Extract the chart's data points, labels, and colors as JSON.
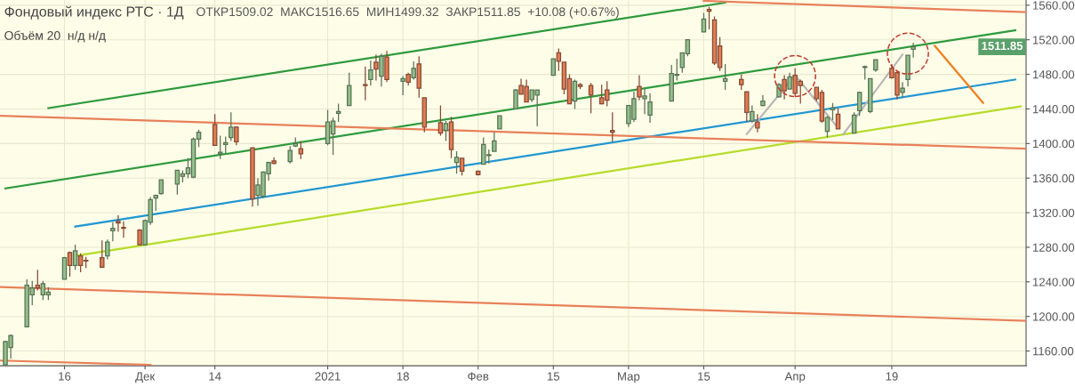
{
  "chart_data": {
    "type": "candlestick",
    "title": "Фондовый индекс РТС · 1Д",
    "annotations": [
      "ОТКР1509.02  МАКС1516.65  МИН1499.32  ЗАКР1511.85  +10.08 (+0.67%)",
      "Объём 20  н/д н/д",
      "1511.85"
    ],
    "x": [
      "2020-11-05",
      "2020-11-06",
      "2020-11-09",
      "2020-11-10",
      "2020-11-11",
      "2020-11-12",
      "2020-11-13",
      "2020-11-16",
      "2020-11-17",
      "2020-11-18",
      "2020-11-19",
      "2020-11-20",
      "2020-11-23",
      "2020-11-24",
      "2020-11-25",
      "2020-11-26",
      "2020-11-27",
      "2020-11-30",
      "2020-12-01",
      "2020-12-02",
      "2020-12-03",
      "2020-12-04",
      "2020-12-07",
      "2020-12-08",
      "2020-12-09",
      "2020-12-10",
      "2020-12-11",
      "2020-12-14",
      "2020-12-15",
      "2020-12-16",
      "2020-12-17",
      "2020-12-18",
      "2020-12-21",
      "2020-12-22",
      "2020-12-23",
      "2020-12-24",
      "2020-12-25",
      "2020-12-28",
      "2020-12-29",
      "2020-12-30",
      "2021-01-04",
      "2021-01-05",
      "2021-01-06",
      "2021-01-08",
      "2021-01-11",
      "2021-01-12",
      "2021-01-13",
      "2021-01-14",
      "2021-01-15",
      "2021-01-18",
      "2021-01-19",
      "2021-01-20",
      "2021-01-21",
      "2021-01-22",
      "2021-01-25",
      "2021-01-26",
      "2021-01-27",
      "2021-01-28",
      "2021-01-29",
      "2021-02-01",
      "2021-02-02",
      "2021-02-03",
      "2021-02-04",
      "2021-02-05",
      "2021-02-08",
      "2021-02-09",
      "2021-02-10",
      "2021-02-11",
      "2021-02-12",
      "2021-02-15",
      "2021-02-16",
      "2021-02-17",
      "2021-02-18",
      "2021-02-19",
      "2021-02-20",
      "2021-02-22",
      "2021-02-24",
      "2021-02-25",
      "2021-02-26",
      "2021-03-01",
      "2021-03-02",
      "2021-03-03",
      "2021-03-04",
      "2021-03-05",
      "2021-03-09",
      "2021-03-10",
      "2021-03-11",
      "2021-03-12",
      "2021-03-15",
      "2021-03-16",
      "2021-03-17",
      "2021-03-18",
      "2021-03-19",
      "2021-03-22",
      "2021-03-23",
      "2021-03-24",
      "2021-03-25",
      "2021-03-26",
      "2021-03-29",
      "2021-03-30",
      "2021-03-31",
      "2021-04-01",
      "2021-04-02",
      "2021-04-05",
      "2021-04-06",
      "2021-04-07",
      "2021-04-08",
      "2021-04-09",
      "2021-04-12",
      "2021-04-13",
      "2021-04-14",
      "2021-04-15",
      "2021-04-16",
      "2021-04-19",
      "2021-04-20",
      "2021-04-21",
      "2021-04-22",
      "2021-04-23"
    ],
    "ohlc": [
      [
        1144,
        1172,
        1144,
        1171
      ],
      [
        1164,
        1179,
        1151,
        1178
      ],
      [
        1188,
        1243,
        1188,
        1236
      ],
      [
        1225,
        1241,
        1213,
        1233
      ],
      [
        1236,
        1254,
        1230,
        1233
      ],
      [
        1225,
        1241,
        1219,
        1238
      ],
      [
        1225,
        1234,
        1219,
        1228
      ],
      [
        1243,
        1269,
        1243,
        1268
      ],
      [
        1274,
        1275,
        1246,
        1259
      ],
      [
        1259,
        1283,
        1254,
        1276
      ],
      [
        1270,
        1273,
        1251,
        1259
      ],
      [
        1265,
        1269,
        1256,
        1264
      ],
      [
        1268,
        1288,
        1256,
        1257
      ],
      [
        1270,
        1289,
        1266,
        1286
      ],
      [
        1299,
        1309,
        1287,
        1302
      ],
      [
        1310,
        1317,
        1298,
        1308
      ],
      [
        1303,
        1310,
        1291,
        1302
      ],
      [
        1300,
        1301,
        1282,
        1283
      ],
      [
        1283,
        1312,
        1282,
        1311
      ],
      [
        1309,
        1338,
        1306,
        1335
      ],
      [
        1337,
        1341,
        1322,
        1340
      ],
      [
        1342,
        1358,
        1341,
        1358
      ],
      [
        1353,
        1369,
        1341,
        1369
      ],
      [
        1362,
        1369,
        1355,
        1365
      ],
      [
        1365,
        1383,
        1360,
        1372
      ],
      [
        1361,
        1407,
        1360,
        1405
      ],
      [
        1405,
        1416,
        1396,
        1413
      ],
      [
        1422,
        1434,
        1398,
        1398
      ],
      [
        1388,
        1409,
        1382,
        1390
      ],
      [
        1399,
        1408,
        1389,
        1401
      ],
      [
        1407,
        1436,
        1403,
        1419
      ],
      [
        1419,
        1420,
        1398,
        1402
      ],
      [
        1395,
        1396,
        1327,
        1336
      ],
      [
        1340,
        1360,
        1328,
        1352
      ],
      [
        1339,
        1368,
        1337,
        1367
      ],
      [
        1365,
        1379,
        1357,
        1378
      ],
      [
        1380,
        1384,
        1376,
        1377
      ],
      [
        1379,
        1397,
        1377,
        1392
      ],
      [
        1397,
        1407,
        1396,
        1400
      ],
      [
        1394,
        1403,
        1382,
        1388
      ],
      [
        1400,
        1439,
        1398,
        1425
      ],
      [
        1411,
        1430,
        1387,
        1426
      ],
      [
        1435,
        1446,
        1425,
        1437
      ],
      [
        1444,
        1482,
        1444,
        1467
      ],
      [
        1468,
        1489,
        1450,
        1467
      ],
      [
        1474,
        1496,
        1467,
        1485
      ],
      [
        1494,
        1503,
        1473,
        1486
      ],
      [
        1478,
        1504,
        1466,
        1501
      ],
      [
        1500,
        1507,
        1471,
        1474
      ],
      [
        1472,
        1478,
        1456,
        1475
      ],
      [
        1480,
        1482,
        1467,
        1471
      ],
      [
        1476,
        1495,
        1474,
        1487
      ],
      [
        1492,
        1501,
        1453,
        1464
      ],
      [
        1453,
        1453,
        1413,
        1419
      ],
      [
        1424,
        1444,
        1409,
        1412
      ],
      [
        1415,
        1426,
        1403,
        1423
      ],
      [
        1425,
        1431,
        1383,
        1393
      ],
      [
        1378,
        1391,
        1365,
        1384
      ],
      [
        1383,
        1383,
        1363,
        1368
      ],
      [
        1368,
        1368,
        1363,
        1364
      ],
      [
        1376,
        1407,
        1376,
        1399
      ],
      [
        1386,
        1393,
        1377,
        1387
      ],
      [
        1391,
        1413,
        1391,
        1403
      ],
      [
        1417,
        1432,
        1417,
        1432
      ],
      [
        1440,
        1463,
        1440,
        1462
      ],
      [
        1467,
        1475,
        1457,
        1457
      ],
      [
        1466,
        1474,
        1448,
        1448
      ],
      [
        1451,
        1462,
        1448,
        1462
      ],
      [
        1456,
        1462,
        1420,
        1462
      ],
      [
        1479,
        1498,
        1479,
        1498
      ],
      [
        1505,
        1510,
        1484,
        1495
      ],
      [
        1494,
        1494,
        1457,
        1463
      ],
      [
        1475,
        1480,
        1446,
        1446
      ],
      [
        1449,
        1474,
        1440,
        1472
      ],
      [
        1468,
        1470,
        1463,
        1466
      ],
      [
        1467,
        1470,
        1435,
        1456
      ],
      [
        1453,
        1468,
        1445,
        1446
      ],
      [
        1462,
        1472,
        1443,
        1450
      ],
      [
        1415,
        1436,
        1402,
        1413
      ],
      [
        1423,
        1444,
        1419,
        1444
      ],
      [
        1428,
        1460,
        1425,
        1452
      ],
      [
        1466,
        1479,
        1450,
        1454
      ],
      [
        1452,
        1463,
        1434,
        1455
      ],
      [
        1433,
        1458,
        1424,
        1448
      ],
      [
        1449,
        1491,
        1449,
        1481
      ],
      [
        1479,
        1498,
        1473,
        1480
      ],
      [
        1488,
        1505,
        1482,
        1505
      ],
      [
        1504,
        1520,
        1501,
        1520
      ],
      [
        1529,
        1551,
        1529,
        1544
      ],
      [
        1555,
        1558,
        1532,
        1553
      ],
      [
        1543,
        1547,
        1491,
        1493
      ],
      [
        1513,
        1523,
        1484,
        1488
      ],
      [
        1472,
        1492,
        1462,
        1475
      ],
      [
        1474,
        1480,
        1462,
        1468
      ],
      [
        1460,
        1460,
        1425,
        1436
      ],
      [
        1426,
        1444,
        1424,
        1437
      ],
      [
        1425,
        1434,
        1413,
        1418
      ],
      [
        1444,
        1456,
        1443,
        1449
      ],
      [
        1454,
        1470,
        1453,
        1468
      ],
      [
        1474,
        1479,
        1451,
        1461
      ],
      [
        1463,
        1482,
        1463,
        1477
      ],
      [
        1479,
        1487,
        1454,
        1458
      ],
      [
        1472,
        1474,
        1446,
        1467
      ],
      [
        1465,
        1465,
        1449,
        1452
      ],
      [
        1459,
        1462,
        1424,
        1426
      ],
      [
        1414,
        1432,
        1407,
        1430
      ],
      [
        1439,
        1447,
        1427,
        1441
      ],
      [
        1434,
        1441,
        1417,
        1417
      ],
      [
        1412,
        1436,
        1412,
        1433
      ],
      [
        1438,
        1460,
        1432,
        1459
      ],
      [
        1488,
        1490,
        1474,
        1489
      ],
      [
        1437,
        1475,
        1435,
        1475
      ],
      [
        1485,
        1497,
        1483,
        1497
      ],
      [
        1487,
        1492,
        1475,
        1476
      ],
      [
        1482,
        1484,
        1451,
        1456
      ],
      [
        1459,
        1471,
        1453,
        1464
      ],
      [
        1474,
        1502,
        1466,
        1502
      ],
      [
        1509.02,
        1516.65,
        1499.32,
        1511.85
      ]
    ],
    "colors": [
      "#93bf8c",
      "#93bf8c",
      "#93bf8c",
      "#93bf8c",
      "#e07c55",
      "#93bf8c",
      "#93bf8c",
      "#93bf8c",
      "#e07c55",
      "#93bf8c",
      "#e07c55",
      "#e07c55",
      "#e07c55",
      "#93bf8c",
      "#93bf8c",
      "#e07c55",
      "#e07c55",
      "#e07c55",
      "#93bf8c",
      "#93bf8c",
      "#93bf8c",
      "#93bf8c",
      "#93bf8c",
      "#93bf8c",
      "#93bf8c",
      "#93bf8c",
      "#93bf8c",
      "#e07c55",
      "#93bf8c",
      "#93bf8c",
      "#93bf8c",
      "#e07c55",
      "#e07c55",
      "#93bf8c",
      "#93bf8c",
      "#93bf8c",
      "#e07c55",
      "#93bf8c",
      "#93bf8c",
      "#e07c55",
      "#93bf8c",
      "#93bf8c",
      "#93bf8c",
      "#93bf8c",
      "#e07c55",
      "#93bf8c",
      "#e07c55",
      "#93bf8c",
      "#e07c55",
      "#93bf8c",
      "#e07c55",
      "#93bf8c",
      "#e07c55",
      "#e07c55",
      "#e07c55",
      "#93bf8c",
      "#e07c55",
      "#93bf8c",
      "#e07c55",
      "#e07c55",
      "#93bf8c",
      "#93bf8c",
      "#93bf8c",
      "#93bf8c",
      "#93bf8c",
      "#e07c55",
      "#e07c55",
      "#93bf8c",
      "#93bf8c",
      "#93bf8c",
      "#e07c55",
      "#e07c55",
      "#e07c55",
      "#93bf8c",
      "#e07c55",
      "#e07c55",
      "#e07c55",
      "#e07c55",
      "#e07c55",
      "#93bf8c",
      "#93bf8c",
      "#e07c55",
      "#93bf8c",
      "#93bf8c",
      "#93bf8c",
      "#93bf8c",
      "#93bf8c",
      "#93bf8c",
      "#93bf8c",
      "#e07c55",
      "#e07c55",
      "#e07c55",
      "#93bf8c",
      "#e07c55",
      "#e07c55",
      "#93bf8c",
      "#e07c55",
      "#93bf8c",
      "#93bf8c",
      "#e07c55",
      "#93bf8c",
      "#e07c55",
      "#e07c55",
      "#e07c55",
      "#e07c55",
      "#93bf8c",
      "#93bf8c",
      "#e07c55",
      "#93bf8c",
      "#93bf8c",
      "#93bf8c",
      "#93bf8c",
      "#93bf8c",
      "#e07c55",
      "#e07c55",
      "#93bf8c",
      "#93bf8c",
      "#93bf8c"
    ],
    "series": [
      {
        "type": "line",
        "color": "#2e9a3e",
        "x": [
          "2020-11-13",
          "2021-03-19"
        ],
        "values": [
          1441,
          1563
        ]
      },
      {
        "type": "line",
        "color": "#2e9a3e",
        "x": [
          "2020-11-05",
          "2021-05-12"
        ],
        "values": [
          1348,
          1531
        ]
      },
      {
        "type": "line",
        "color": "#2196d3",
        "x": [
          "2020-11-18",
          "2021-05-12"
        ],
        "values": [
          1304,
          1474
        ]
      },
      {
        "type": "line",
        "color": "#b5dc2a",
        "x": [
          "2020-11-18",
          "2021-05-13"
        ],
        "values": [
          1270,
          1443
        ]
      },
      {
        "type": "line",
        "color": "#e8805a",
        "x": [
          "2021-03-15",
          "2021-05-14"
        ],
        "values": [
          1565,
          1552
        ]
      },
      {
        "type": "line",
        "color": "#e8805a",
        "x": [
          "2020-11-04",
          "2021-05-14"
        ],
        "values": [
          1432,
          1394
        ]
      },
      {
        "type": "line",
        "color": "#e8805a",
        "x": [
          "2020-11-04",
          "2021-05-14"
        ],
        "values": [
          1234,
          1195
        ]
      },
      {
        "type": "line",
        "color": "#e8805a",
        "x": [
          "2020-11-04",
          "2020-12-02"
        ],
        "values": [
          1149,
          1144
        ]
      },
      {
        "type": "line",
        "color": "#b8b8b8",
        "x": [
          "2021-03-23",
          "2021-04-01",
          "2021-04-09"
        ],
        "values": [
          1411,
          1479,
          1418
        ]
      },
      {
        "type": "line",
        "color": "#b8b8b8",
        "x": [
          "2021-04-10",
          "2021-04-21"
        ],
        "values": [
          1411,
          1503
        ]
      },
      {
        "type": "line",
        "color": "#f07f20",
        "x": [
          "2021-04-27",
          "2021-05-06"
        ],
        "values": [
          1513,
          1447
        ]
      },
      {
        "type": "scatter",
        "color": "#c0392b",
        "marker": "circle",
        "line_style": "dashed",
        "x": [
          "2021-04-01",
          "2021-04-22"
        ],
        "values": [
          1478,
          1504
        ]
      }
    ],
    "xlim": [
      "2020-11-04",
      "2021-05-14"
    ],
    "xticks": [
      {
        "value": "2020-11-16",
        "label": "16"
      },
      {
        "value": "2020-12-01",
        "label": "Дек"
      },
      {
        "value": "2020-12-14",
        "label": "14"
      },
      {
        "value": "2021-01-04",
        "label": "2021"
      },
      {
        "value": "2021-01-18",
        "label": "18"
      },
      {
        "value": "2021-02-01",
        "label": "Фев"
      },
      {
        "value": "2021-02-15",
        "label": "15"
      },
      {
        "value": "2021-03-01",
        "label": "Мар"
      },
      {
        "value": "2021-03-15",
        "label": "15"
      },
      {
        "value": "2021-04-01",
        "label": "Апр"
      },
      {
        "value": "2021-04-19",
        "label": "19"
      }
    ],
    "ylim": [
      1143,
      1566
    ],
    "yticks": [
      {
        "value": 1160,
        "label": "1160.00"
      },
      {
        "value": 1200,
        "label": "1200.00"
      },
      {
        "value": 1240,
        "label": "1240.00"
      },
      {
        "value": 1280,
        "label": "1280.00"
      },
      {
        "value": 1320,
        "label": "1320.00"
      },
      {
        "value": 1360,
        "label": "1360.00"
      },
      {
        "value": 1400,
        "label": "1400.00"
      },
      {
        "value": 1440,
        "label": "1440.00"
      },
      {
        "value": 1480,
        "label": "1480.00"
      },
      {
        "value": 1520,
        "label": "1520.00"
      },
      {
        "value": 1560,
        "label": "1560.00"
      }
    ],
    "grid": true
  }
}
